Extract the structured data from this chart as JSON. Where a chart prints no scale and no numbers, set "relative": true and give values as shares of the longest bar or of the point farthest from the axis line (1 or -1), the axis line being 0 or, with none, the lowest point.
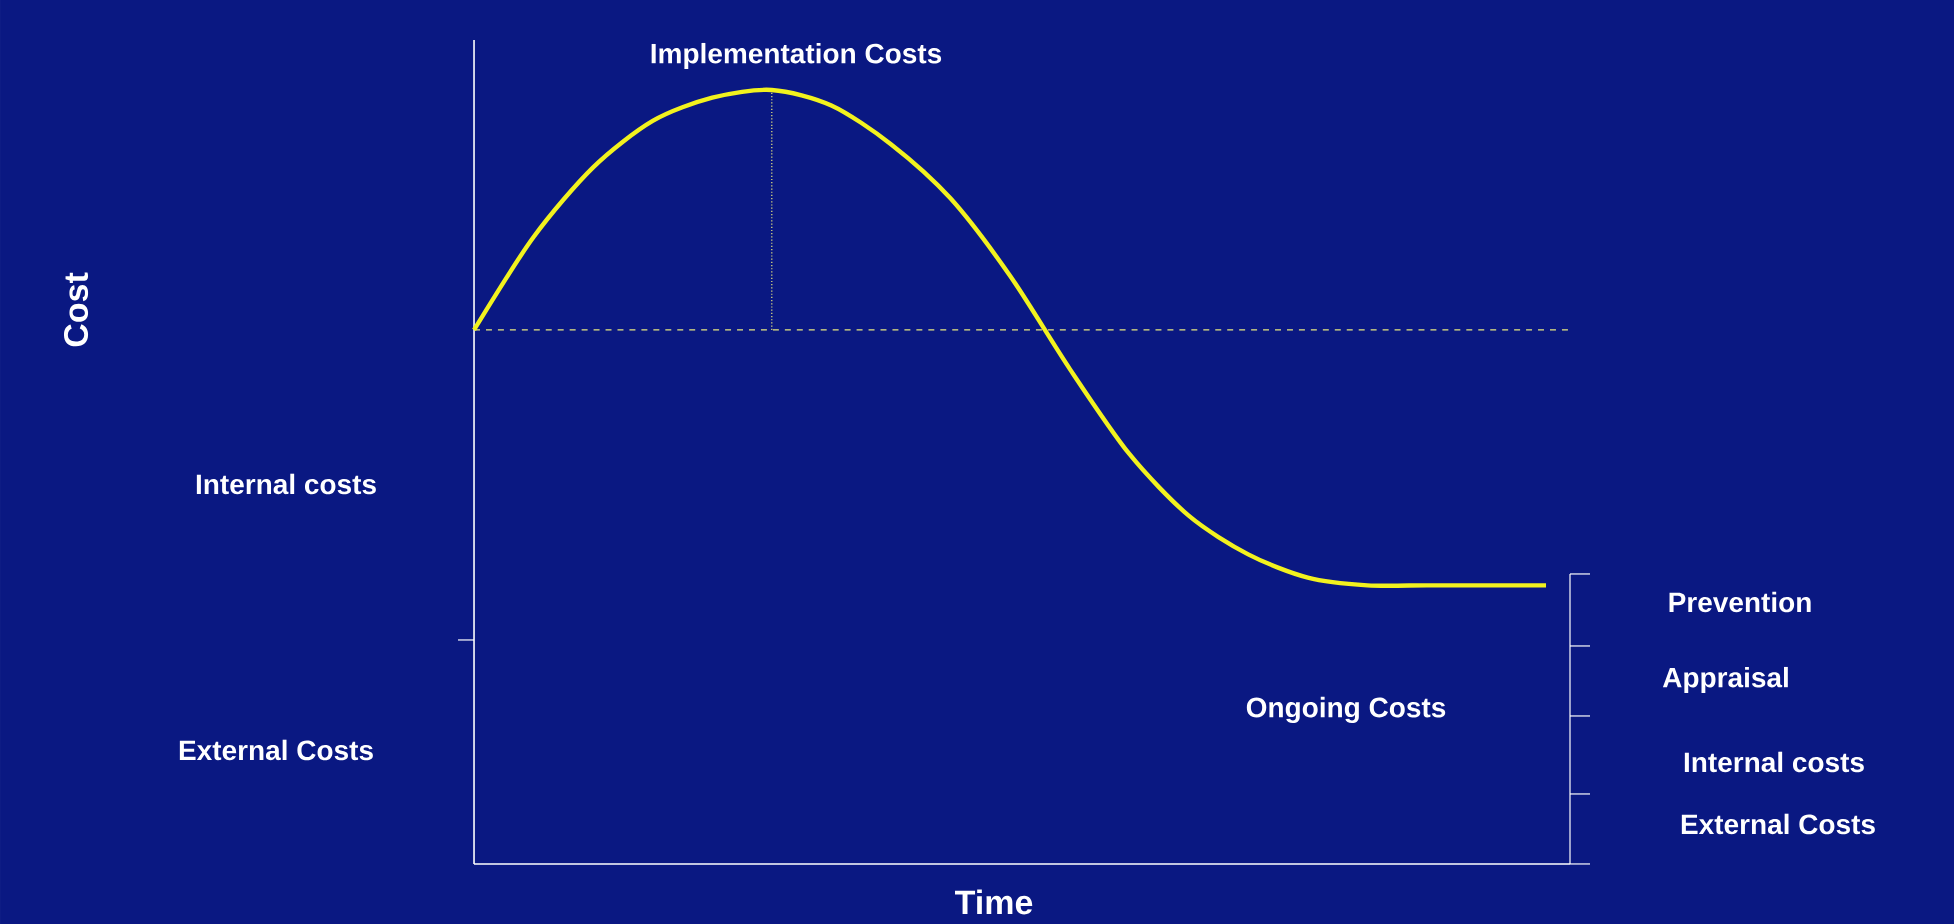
{
  "chart_data": {
    "type": "line",
    "relative": true,
    "xlabel": "Time",
    "categories": [
      null,
      null,
      null,
      null,
      null,
      null,
      null,
      null,
      null,
      null,
      null,
      null,
      null,
      null,
      null,
      null,
      null,
      null,
      null
    ],
    "series": [
      {
        "color": "#f2f21e",
        "values": [
          0.69,
          0.81,
          0.9,
          0.96,
          0.99,
          1.0,
          0.98,
          0.93,
          0.86,
          0.76,
          0.64,
          0.53,
          0.45,
          0.4,
          0.37,
          0.36,
          0.36,
          0.36,
          0.36
        ]
      }
    ],
    "ref_lines": [
      {
        "axis": "y",
        "value": 0.69,
        "color": "#e8e880",
        "line_style": "dashed"
      }
    ],
    "annotations": [
      "Implementation Costs",
      "Internal costs",
      "External Costs",
      "Ongoing Costs",
      "Prevention",
      "Appraisal",
      "Internal costs",
      "External Costs",
      "Cost"
    ],
    "marker": "none",
    "line_style": "solid"
  }
}
